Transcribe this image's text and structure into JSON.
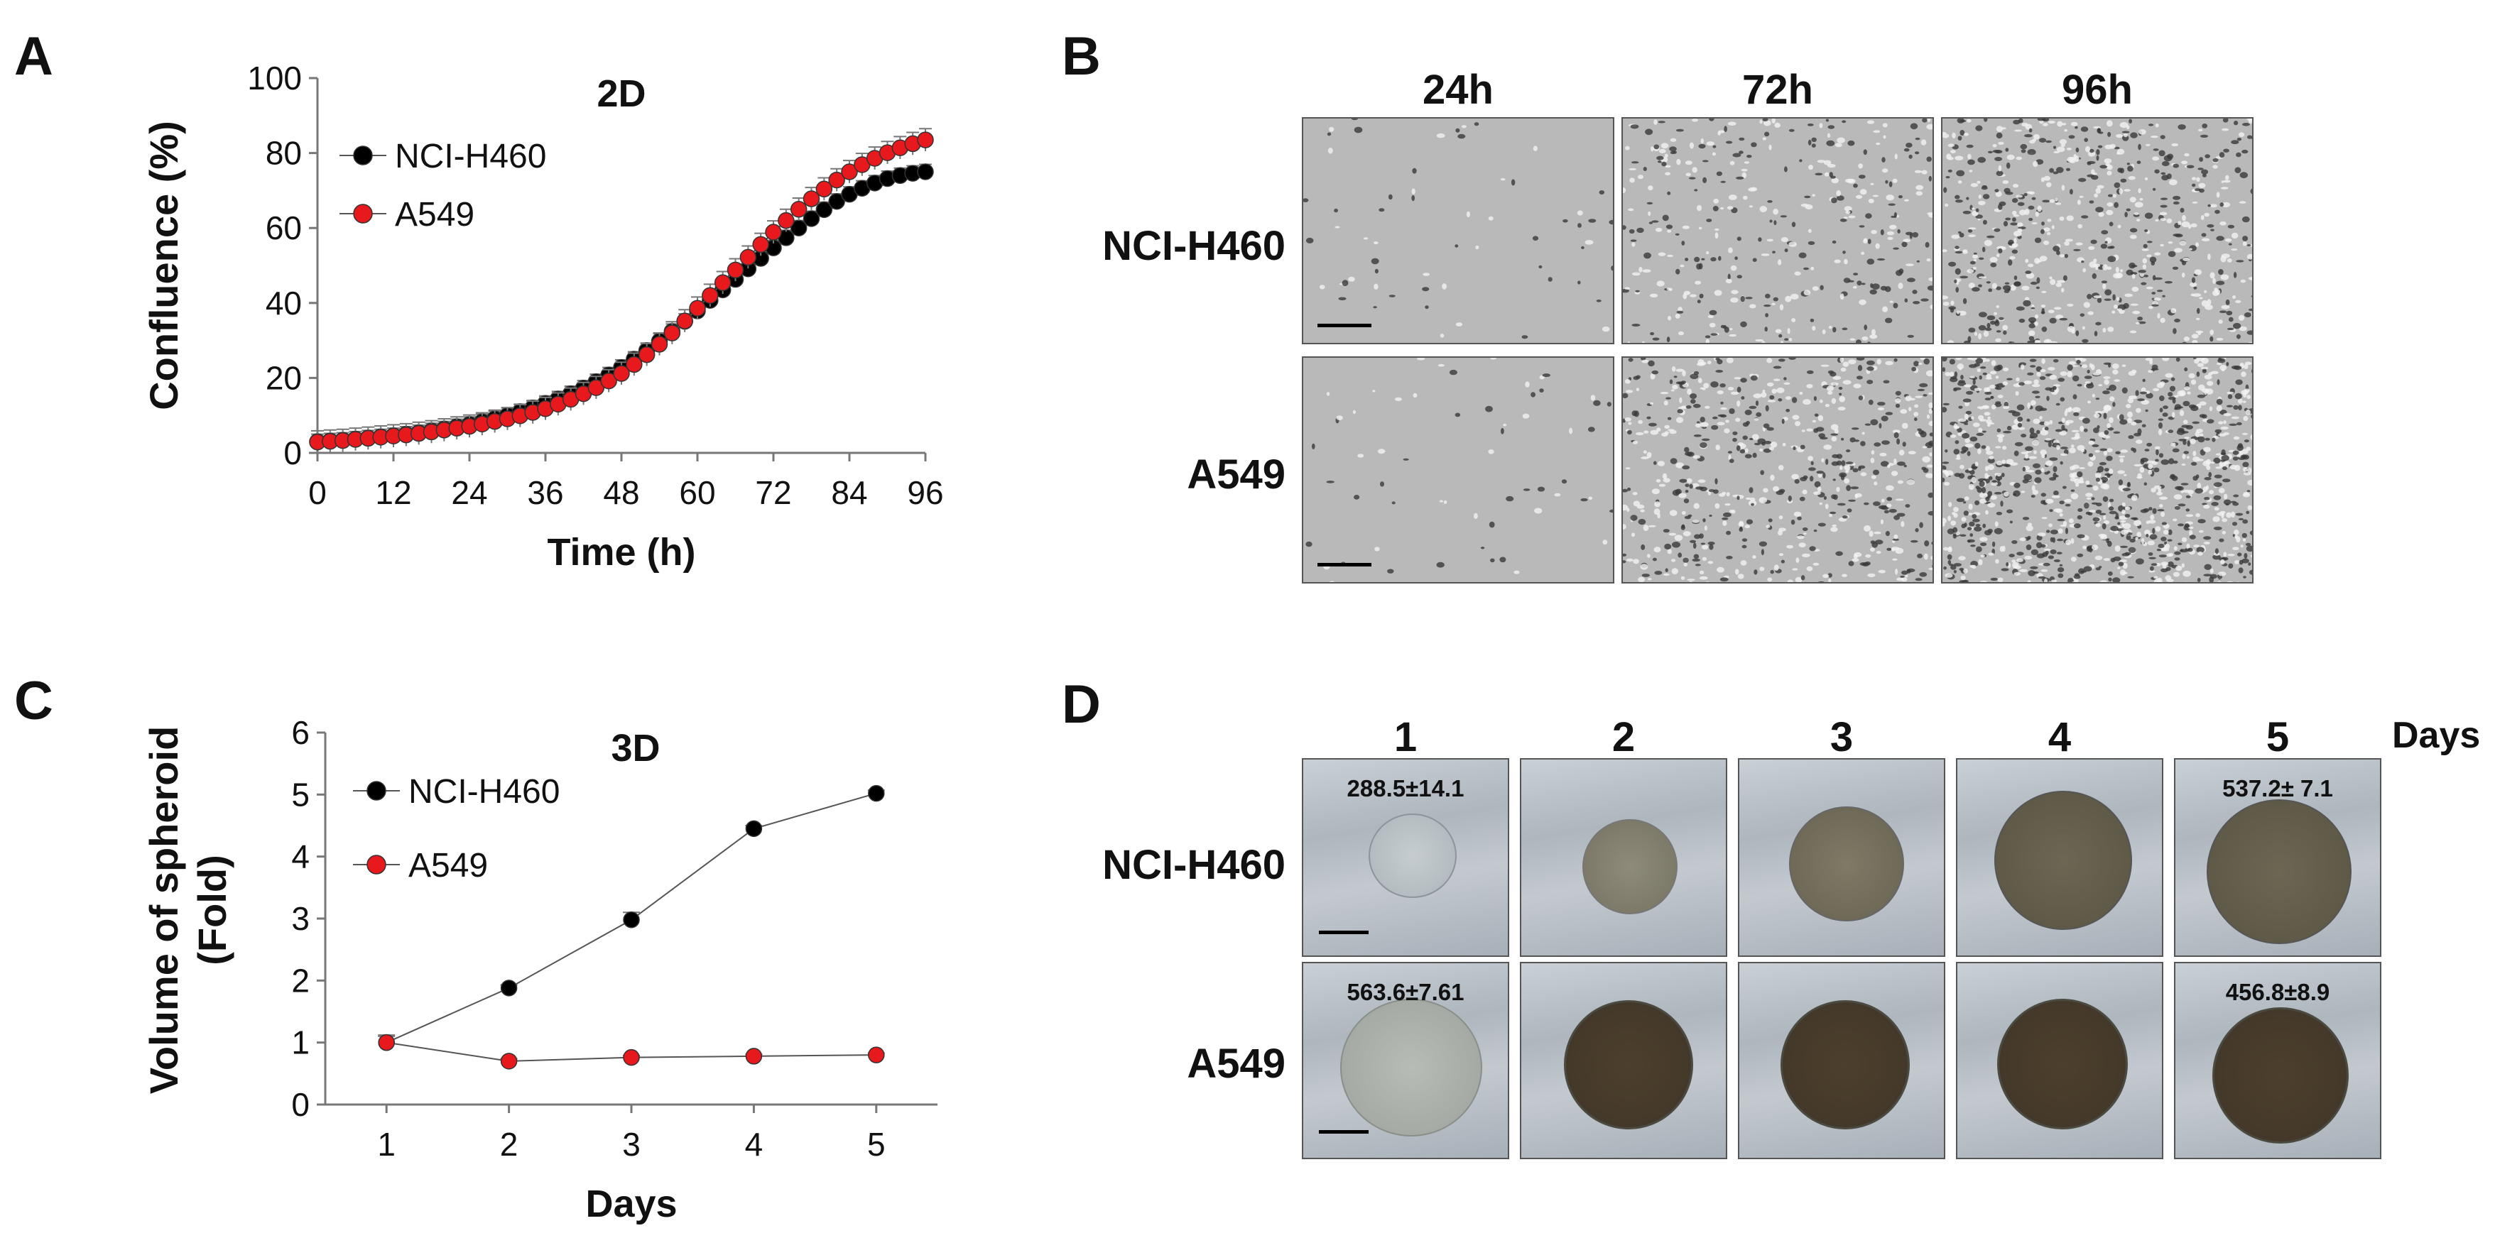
{
  "panels": {
    "A": {
      "letter": "A",
      "chart_data": {
        "type": "line",
        "title": "2D",
        "xlabel": "Time (h)",
        "ylabel": "Confluence (%)",
        "xlim": [
          0,
          96
        ],
        "ylim": [
          0,
          100
        ],
        "xticks": [
          0,
          12,
          24,
          36,
          48,
          60,
          72,
          84,
          96
        ],
        "yticks": [
          0,
          20,
          40,
          60,
          80,
          100
        ],
        "legend_position": "top-left",
        "x": [
          0,
          2,
          4,
          6,
          8,
          10,
          12,
          14,
          16,
          18,
          20,
          22,
          24,
          26,
          28,
          30,
          32,
          34,
          36,
          38,
          40,
          42,
          44,
          46,
          48,
          50,
          52,
          54,
          56,
          58,
          60,
          62,
          64,
          66,
          68,
          70,
          72,
          74,
          76,
          78,
          80,
          82,
          84,
          86,
          88,
          90,
          92,
          94,
          96
        ],
        "series": [
          {
            "name": "NCI-H460",
            "color": "#000000",
            "values": [
              3,
              3.2,
              3.4,
              3.7,
              4,
              4.3,
              4.6,
              5,
              5.4,
              5.9,
              6.4,
              7,
              7.6,
              8.3,
              9.1,
              10,
              11,
              12,
              13.2,
              14.4,
              15.8,
              17.3,
              19,
              20.8,
              22.8,
              25,
              27.3,
              29.8,
              32.4,
              35.1,
              37.9,
              40.7,
              43.5,
              46.3,
              49.1,
              51.9,
              54.7,
              57.4,
              60,
              62.5,
              64.9,
              67.1,
              69,
              70.6,
              72,
              73.2,
              74,
              74.6,
              75
            ],
            "error": 2
          },
          {
            "name": "A549",
            "color": "#e8191d",
            "values": [
              2.9,
              3.1,
              3.3,
              3.6,
              3.9,
              4.2,
              4.5,
              4.8,
              5.2,
              5.6,
              6.1,
              6.6,
              7.1,
              7.7,
              8.4,
              9.1,
              9.9,
              10.8,
              11.8,
              13,
              14.3,
              15.8,
              17.4,
              19.2,
              21.2,
              23.6,
              26.2,
              29,
              32,
              35.2,
              38.6,
              42,
              45.4,
              48.8,
              52.2,
              55.6,
              58.9,
              62,
              65,
              67.8,
              70.4,
              72.8,
              75,
              76.9,
              78.6,
              80.1,
              81.4,
              82.5,
              83.5
            ],
            "error": 3
          }
        ]
      }
    },
    "B": {
      "letter": "B",
      "columns": [
        "24h",
        "72h",
        "96h"
      ],
      "rows": [
        "NCI-H460",
        "A549"
      ]
    },
    "C": {
      "letter": "C",
      "chart_data": {
        "type": "line",
        "title": "3D",
        "xlabel": "Days",
        "ylabel_line1": "Volume of spheroid",
        "ylabel_line2": "(Fold)",
        "xlim": [
          0.5,
          5.5
        ],
        "ylim": [
          0,
          6
        ],
        "xticks": [
          1,
          2,
          3,
          4,
          5
        ],
        "yticks": [
          0,
          1,
          2,
          3,
          4,
          5,
          6
        ],
        "legend_position": "top-left",
        "x": [
          1,
          2,
          3,
          4,
          5
        ],
        "series": [
          {
            "name": "NCI-H460",
            "color": "#000000",
            "values": [
              1,
              1.88,
              2.98,
              4.45,
              5.02
            ],
            "error": [
              0.12,
              0.05,
              0.12,
              0.05,
              0.05
            ]
          },
          {
            "name": "A549",
            "color": "#e8191d",
            "values": [
              1,
              0.7,
              0.76,
              0.78,
              0.8
            ],
            "error": [
              0.1,
              0.04,
              0.03,
              0.03,
              0.03
            ]
          }
        ]
      }
    },
    "D": {
      "letter": "D",
      "columns": [
        "1",
        "2",
        "3",
        "4",
        "5"
      ],
      "days_label": "Days",
      "rows": [
        "NCI-H460",
        "A549"
      ],
      "annotations": {
        "nci_day1": "288.5±14.1",
        "nci_day5": "537.2± 7.1",
        "a549_day1": "563.6±7.61",
        "a549_day5": "456.8±8.9"
      }
    }
  }
}
